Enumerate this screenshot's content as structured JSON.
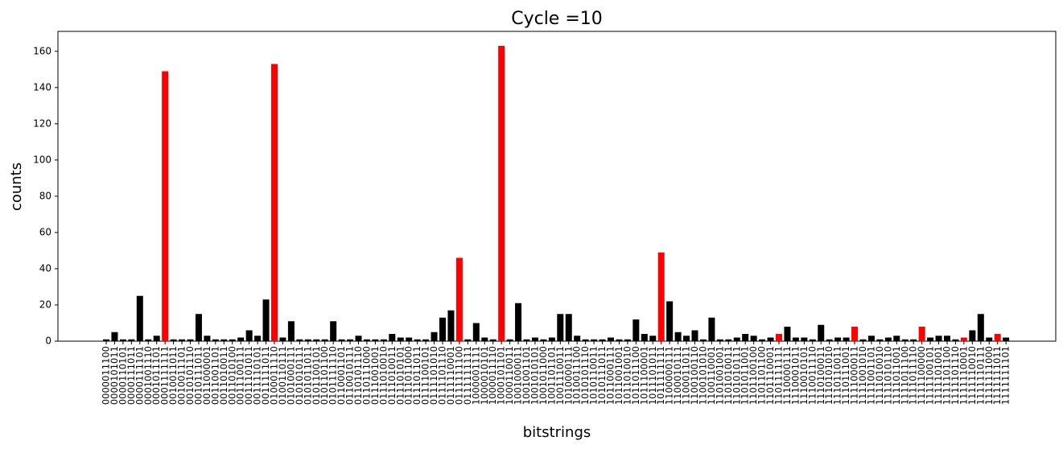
{
  "chart_data": {
    "type": "bar",
    "title": "Cycle  =10",
    "x_label": "bitstrings",
    "y_label": "counts",
    "categories": [
      "0000011100",
      "0000101011",
      "0000110101",
      "0000111011",
      "0000111101",
      "0001001110",
      "0001011101",
      "0001111111",
      "0010011011",
      "0010011101",
      "0010101110",
      "0010111011",
      "0011000001",
      "0011001101",
      "0011010011",
      "0011010100",
      "0011100111",
      "0011101011",
      "0011110101",
      "0011111011",
      "0100011110",
      "0100110111",
      "0101000111",
      "0101010111",
      "0101011011",
      "0101100101",
      "0101101100",
      "0101111110",
      "0110001101",
      "0110010111",
      "0110101110",
      "0110111000",
      "0111001001",
      "0111010010",
      "0111010011",
      "0111010101",
      "0111011000",
      "0111011011",
      "0111100101",
      "0111101010",
      "0111101110",
      "0111110001",
      "0111111100",
      "0111111111",
      "1000001111",
      "1000010101",
      "1000011110",
      "1000101101",
      "1000110011",
      "1001000011",
      "1001001101",
      "1001010101",
      "1001011000",
      "1001101101",
      "1001110011",
      "1010000111",
      "1010011100",
      "1010101110",
      "1010110011",
      "1010111011",
      "1011000111",
      "1011001001",
      "1011010010",
      "1011011100",
      "1011100001",
      "1011101011",
      "1011111111",
      "1100000111",
      "1100010111",
      "1100011011",
      "1100100110",
      "1100101010",
      "1100110001",
      "1101001001",
      "1101010011",
      "1101010111",
      "1101011001",
      "1101100100",
      "1101101100",
      "1101110001",
      "1101111111",
      "1110000111",
      "1110001011",
      "1110010101",
      "1110011110",
      "1110100011",
      "1110101010",
      "1110110011",
      "1110111001",
      "1111000011",
      "1111001010",
      "1111001101",
      "1111010010",
      "1111010110",
      "1111011001",
      "1111011100",
      "1111011110",
      "1111100000",
      "1111100101",
      "1111101001",
      "1111101100",
      "1111101110",
      "1111110001",
      "1111110010",
      "1111110111",
      "1111111000",
      "1111111011",
      "1111111101"
    ],
    "values": [
      1,
      5,
      1,
      1,
      25,
      1,
      3,
      149,
      1,
      1,
      1,
      15,
      3,
      1,
      1,
      1,
      2,
      6,
      3,
      23,
      153,
      2,
      11,
      1,
      1,
      1,
      1,
      11,
      1,
      1,
      3,
      1,
      1,
      1,
      4,
      2,
      2,
      1,
      1,
      5,
      13,
      17,
      46,
      1,
      10,
      2,
      1,
      163,
      1,
      21,
      1,
      2,
      1,
      2,
      15,
      15,
      3,
      1,
      1,
      1,
      2,
      1,
      1,
      12,
      4,
      3,
      49,
      22,
      5,
      3,
      6,
      1,
      13,
      1,
      1,
      2,
      4,
      3,
      1,
      2,
      4,
      8,
      2,
      2,
      1,
      9,
      1,
      2,
      2,
      8,
      1,
      3,
      1,
      2,
      3,
      1,
      1,
      8,
      2,
      3,
      3,
      1,
      2,
      6,
      15,
      2,
      4,
      2
    ],
    "colors": [
      "#000000",
      "#000000",
      "#000000",
      "#000000",
      "#000000",
      "#000000",
      "#000000",
      "#ff0000",
      "#000000",
      "#000000",
      "#000000",
      "#000000",
      "#000000",
      "#000000",
      "#000000",
      "#000000",
      "#000000",
      "#000000",
      "#000000",
      "#000000",
      "#ff0000",
      "#000000",
      "#000000",
      "#000000",
      "#000000",
      "#000000",
      "#000000",
      "#000000",
      "#000000",
      "#000000",
      "#000000",
      "#000000",
      "#000000",
      "#000000",
      "#000000",
      "#000000",
      "#000000",
      "#000000",
      "#000000",
      "#000000",
      "#000000",
      "#000000",
      "#ff0000",
      "#000000",
      "#000000",
      "#000000",
      "#000000",
      "#ff0000",
      "#000000",
      "#000000",
      "#000000",
      "#000000",
      "#000000",
      "#000000",
      "#000000",
      "#000000",
      "#000000",
      "#000000",
      "#000000",
      "#000000",
      "#000000",
      "#000000",
      "#000000",
      "#000000",
      "#000000",
      "#000000",
      "#ff0000",
      "#000000",
      "#000000",
      "#000000",
      "#000000",
      "#000000",
      "#000000",
      "#000000",
      "#000000",
      "#000000",
      "#000000",
      "#000000",
      "#000000",
      "#000000",
      "#ff0000",
      "#000000",
      "#000000",
      "#000000",
      "#000000",
      "#000000",
      "#000000",
      "#000000",
      "#000000",
      "#ff0000",
      "#000000",
      "#000000",
      "#000000",
      "#000000",
      "#000000",
      "#000000",
      "#000000",
      "#ff0000",
      "#000000",
      "#000000",
      "#000000",
      "#000000",
      "#ff0000",
      "#000000",
      "#000000",
      "#000000",
      "#ff0000",
      "#000000"
    ],
    "ylim": [
      0,
      171
    ],
    "yticks": [
      0,
      20,
      40,
      60,
      80,
      100,
      120,
      140,
      160
    ],
    "grid": false
  }
}
